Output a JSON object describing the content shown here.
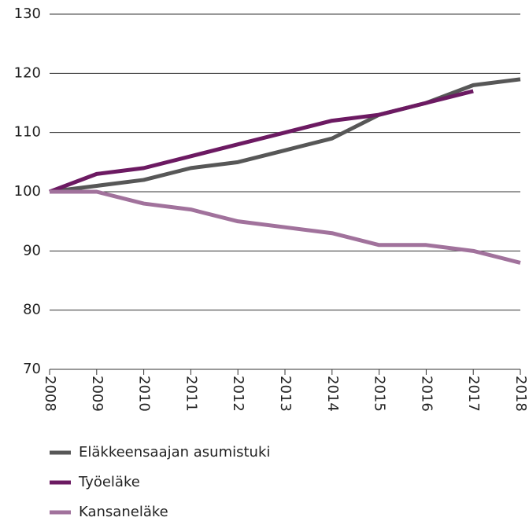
{
  "chart_data": {
    "type": "line",
    "categories": [
      "2008",
      "2009",
      "2010",
      "2011",
      "2012",
      "2013",
      "2014",
      "2015",
      "2016",
      "2017",
      "2018"
    ],
    "series": [
      {
        "name": "Eläkkeensaajan asumistuki",
        "color": "#575757",
        "values": [
          100,
          101,
          102,
          104,
          105,
          107,
          109,
          113,
          115,
          118,
          119
        ]
      },
      {
        "name": "Työeläke",
        "color": "#6c1a62",
        "values": [
          100,
          103,
          104,
          106,
          108,
          110,
          112,
          113,
          115,
          117,
          null
        ]
      },
      {
        "name": "Kansaneläke",
        "color": "#a1729c",
        "values": [
          100,
          100,
          98,
          97,
          95,
          94,
          93,
          91,
          91,
          90,
          88
        ]
      }
    ],
    "ylim": [
      70,
      130
    ],
    "yticks": [
      70,
      80,
      90,
      100,
      110,
      120,
      130
    ],
    "grid": true,
    "legend": "bottom"
  }
}
